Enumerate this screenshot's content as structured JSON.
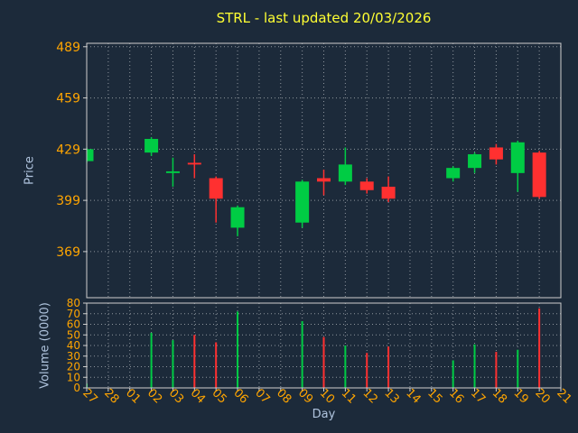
{
  "colors": {
    "background": "#1c2a3a",
    "grid": "#ffffff",
    "spine": "#cfcfcf",
    "title": "#ffff33",
    "axis_label": "#b0c4de",
    "tick_label": "#ffa500",
    "up": "#00cc44",
    "down": "#ff3030"
  },
  "chart_data": {
    "type": "candlestick+volume-bar",
    "title": "STRL - last updated 20/03/2026",
    "xlabel": "Day",
    "grid": true,
    "legend": "none",
    "price_axis": {
      "label": "Price",
      "ticks": [
        369,
        399,
        429,
        459,
        489
      ],
      "ylim": [
        342,
        491
      ]
    },
    "volume_axis": {
      "label": "Volume (0000)",
      "ticks": [
        0,
        10,
        20,
        30,
        40,
        50,
        60,
        70,
        80
      ],
      "ylim": [
        0,
        80
      ]
    },
    "categories": [
      "27",
      "28",
      "01",
      "02",
      "03",
      "04",
      "05",
      "06",
      "07",
      "08",
      "09",
      "10",
      "11",
      "12",
      "13",
      "14",
      "15",
      "16",
      "17",
      "18",
      "19",
      "20",
      "21"
    ],
    "up_color": "#00cc44",
    "down_color": "#ff3030",
    "candles": [
      {
        "day": "27",
        "open": 422,
        "high": 430,
        "low": 421,
        "close": 429,
        "volume": 4
      },
      {
        "day": "02",
        "open": 427,
        "high": 436,
        "low": 425,
        "close": 435,
        "volume": 52
      },
      {
        "day": "03",
        "open": 415,
        "high": 424,
        "low": 407,
        "close": 416,
        "volume": 45
      },
      {
        "day": "04",
        "open": 421,
        "high": 426,
        "low": 412,
        "close": 420,
        "volume": 50
      },
      {
        "day": "05",
        "open": 412,
        "high": 413,
        "low": 386,
        "close": 400,
        "volume": 43
      },
      {
        "day": "06",
        "open": 383,
        "high": 396,
        "low": 378,
        "close": 395,
        "volume": 72
      },
      {
        "day": "09",
        "open": 386,
        "high": 411,
        "low": 383,
        "close": 410,
        "volume": 63
      },
      {
        "day": "10",
        "open": 412,
        "high": 417,
        "low": 402,
        "close": 410,
        "volume": 48
      },
      {
        "day": "11",
        "open": 410,
        "high": 430,
        "low": 408,
        "close": 420,
        "volume": 40
      },
      {
        "day": "12",
        "open": 410,
        "high": 412,
        "low": 403,
        "close": 405,
        "volume": 33
      },
      {
        "day": "13",
        "open": 407,
        "high": 413,
        "low": 398,
        "close": 400,
        "volume": 39
      },
      {
        "day": "16",
        "open": 412,
        "high": 419,
        "low": 410,
        "close": 418,
        "volume": 26
      },
      {
        "day": "17",
        "open": 418,
        "high": 427,
        "low": 415,
        "close": 426,
        "volume": 41
      },
      {
        "day": "18",
        "open": 430,
        "high": 432,
        "low": 420,
        "close": 423,
        "volume": 34
      },
      {
        "day": "19",
        "open": 415,
        "high": 434,
        "low": 404,
        "close": 433,
        "volume": 36
      },
      {
        "day": "20",
        "open": 427,
        "high": 428,
        "low": 400,
        "close": 401,
        "volume": 75
      }
    ]
  }
}
